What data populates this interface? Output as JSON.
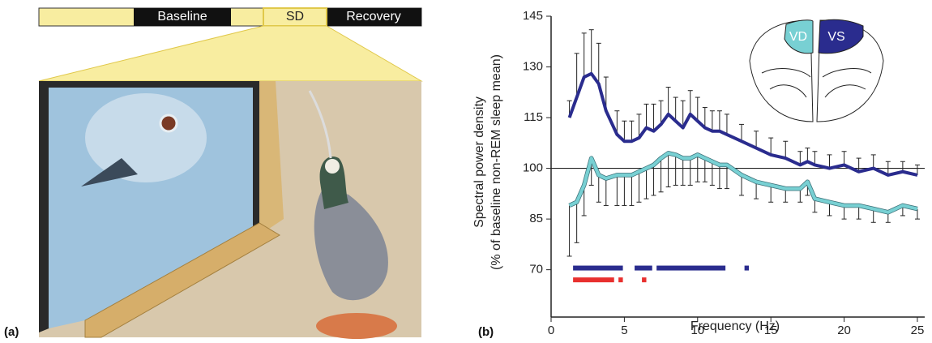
{
  "panel_a": {
    "label": "(a)",
    "timeline": [
      "Baseline",
      "SD",
      "Recovery"
    ]
  },
  "chart_data": {
    "type": "line",
    "panel_label": "(b)",
    "ylabel": [
      "Spectral power density",
      "(% of baseline non-REM sleep mean)"
    ],
    "xlabel": "Frequency (Hz)",
    "x": [
      1.25,
      1.75,
      2.25,
      2.75,
      3.25,
      3.75,
      4.5,
      5,
      5.5,
      6,
      6.5,
      7,
      7.5,
      8,
      8.5,
      9,
      9.5,
      10,
      10.5,
      11,
      11.5,
      12,
      13,
      14,
      15,
      16,
      17,
      17.5,
      18,
      19,
      20,
      21,
      22,
      23,
      24,
      25
    ],
    "series": [
      {
        "name": "VS",
        "color": "#2a2c8e",
        "error_direction": "up",
        "values": [
          115,
          121,
          127,
          128,
          125,
          117,
          110,
          108,
          108,
          109,
          112,
          111,
          113,
          116,
          114,
          112,
          116,
          114,
          112,
          111,
          111,
          110,
          108,
          106,
          104,
          103,
          101,
          102,
          101,
          100,
          101,
          99,
          100,
          98,
          99,
          98
        ],
        "errors": [
          5,
          13,
          13,
          13,
          12,
          10,
          7,
          6,
          6,
          7,
          7,
          8,
          7,
          8,
          7,
          8,
          7,
          7,
          6,
          6,
          6,
          6,
          5,
          5,
          5,
          5,
          4,
          4,
          4,
          4,
          4,
          4,
          4,
          4,
          3,
          3
        ]
      },
      {
        "name": "VD",
        "color": "#78d0d3",
        "error_direction": "down",
        "values": [
          89,
          90,
          95,
          103,
          98,
          97,
          98,
          98,
          98,
          99,
          100,
          101,
          103,
          104.5,
          104,
          103,
          103,
          104,
          103,
          102,
          101,
          101,
          98,
          96,
          95,
          94,
          94,
          96,
          91,
          90,
          89,
          89,
          88,
          87,
          89,
          88
        ],
        "errors": [
          15,
          12,
          9,
          8,
          8,
          8,
          9,
          9,
          9,
          9,
          9,
          9,
          10,
          10,
          9,
          8,
          8,
          8,
          7,
          7,
          7,
          7,
          6,
          5,
          5,
          4,
          4,
          4,
          4,
          4,
          4,
          4,
          4,
          3,
          3,
          3
        ]
      }
    ],
    "significance": [
      {
        "color": "#2a2c8e",
        "level": 70.5,
        "ranges": [
          [
            1.5,
            4.9
          ],
          [
            5.7,
            6.9
          ],
          [
            7.2,
            11.9
          ],
          [
            13.2,
            13.5
          ]
        ]
      },
      {
        "color": "#e8302e",
        "level": 67,
        "ranges": [
          [
            1.5,
            4.3
          ],
          [
            4.6,
            4.9
          ],
          [
            6.2,
            6.5
          ]
        ]
      }
    ],
    "reference_line": 100,
    "xlim": [
      0,
      25.5
    ],
    "ylim": [
      56,
      145
    ],
    "xticks": [
      0,
      5,
      10,
      15,
      20,
      25
    ],
    "yticks": [
      70,
      85,
      100,
      115,
      130,
      145
    ]
  }
}
